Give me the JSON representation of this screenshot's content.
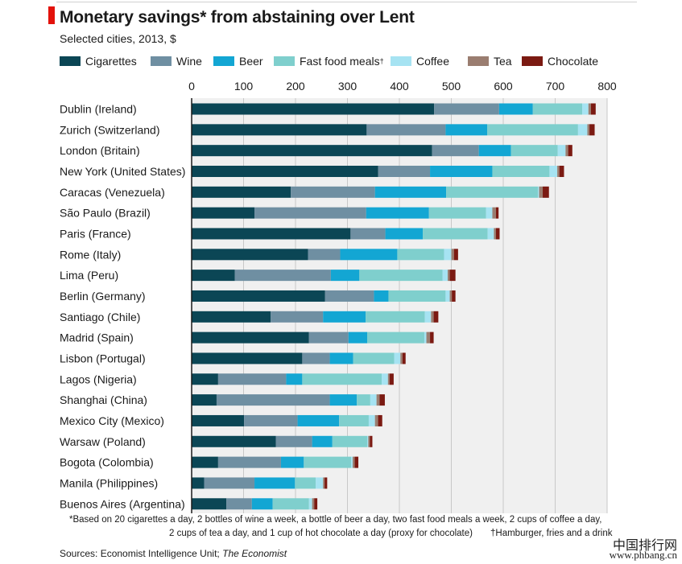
{
  "header": {
    "title": "Monetary savings* from abstaining over Lent",
    "subtitle": "Selected cities, 2013, $"
  },
  "colors": {
    "accent_red": "#e3120b",
    "grid": "#c8c8c8",
    "bar_background": "#f0f0f0"
  },
  "legend": [
    {
      "label": "Cigarettes",
      "color": "#0b4655"
    },
    {
      "label": "Wine",
      "color": "#6f8fa2"
    },
    {
      "label": "Beer",
      "color": "#13a6d3"
    },
    {
      "label": "Fast food meals",
      "dagger": "†",
      "color": "#7fcfcd"
    },
    {
      "label": "Coffee",
      "color": "#a6e3f2"
    },
    {
      "label": "Tea",
      "color": "#9a7d70"
    },
    {
      "label": "Chocolate",
      "color": "#7b1a12"
    }
  ],
  "chart_data": {
    "type": "bar",
    "orientation": "horizontal",
    "stacked": true,
    "title": "Monetary savings* from abstaining over Lent",
    "subtitle": "Selected cities, 2013, $",
    "xlim": [
      0,
      800
    ],
    "xticks": [
      0,
      100,
      200,
      300,
      400,
      500,
      600,
      700,
      800
    ],
    "xlabel": "",
    "ylabel": "",
    "grid": true,
    "legend_position": "top",
    "categories": [
      "Dublin (Ireland)",
      "Zurich (Switzerland)",
      "London (Britain)",
      "New York (United States)",
      "Caracas (Venezuela)",
      "São Paulo (Brazil)",
      "Paris (France)",
      "Rome (Italy)",
      "Lima (Peru)",
      "Berlin (Germany)",
      "Santiago (Chile)",
      "Madrid (Spain)",
      "Lisbon (Portugal)",
      "Lagos (Nigeria)",
      "Shanghai (China)",
      "Mexico City (Mexico)",
      "Warsaw (Poland)",
      "Bogota (Colombia)",
      "Manila (Philippines)",
      "Buenos Aires (Argentina)"
    ],
    "series": [
      {
        "name": "Cigarettes",
        "color": "#0b4655",
        "values": [
          467,
          337,
          463,
          359,
          191,
          121,
          306,
          224,
          83,
          257,
          152,
          226,
          213,
          51,
          48,
          101,
          162,
          51,
          24,
          67
        ]
      },
      {
        "name": "Wine",
        "color": "#6f8fa2",
        "values": [
          125,
          152,
          90,
          100,
          162,
          215,
          67,
          62,
          185,
          94,
          101,
          76,
          53,
          131,
          218,
          103,
          70,
          121,
          97,
          49
        ]
      },
      {
        "name": "Beer",
        "color": "#13a6d3",
        "values": [
          65,
          80,
          62,
          120,
          137,
          121,
          72,
          110,
          55,
          28,
          82,
          36,
          45,
          31,
          52,
          80,
          39,
          44,
          78,
          40
        ]
      },
      {
        "name": "Fast food meals",
        "color": "#7fcfcd",
        "values": [
          95,
          175,
          90,
          110,
          177,
          110,
          125,
          90,
          160,
          110,
          114,
          110,
          79,
          153,
          26,
          57,
          67,
          91,
          40,
          70
        ]
      },
      {
        "name": "Coffee",
        "color": "#a6e3f2",
        "values": [
          12,
          18,
          15,
          15,
          2,
          12,
          12,
          14,
          10,
          8,
          12,
          4,
          12,
          12,
          12,
          12,
          2,
          3,
          14,
          6
        ]
      },
      {
        "name": "Tea",
        "color": "#9a7d70",
        "values": [
          5,
          4,
          5,
          4,
          7,
          7,
          4,
          5,
          4,
          4,
          5,
          7,
          4,
          3,
          6,
          6,
          3,
          4,
          3,
          4
        ]
      },
      {
        "name": "Chocolate",
        "color": "#7b1a12",
        "values": [
          9,
          10,
          8,
          9,
          12,
          5,
          7,
          8,
          11,
          7,
          9,
          7,
          6,
          8,
          10,
          8,
          5,
          7,
          5,
          6
        ]
      }
    ]
  },
  "footnote": {
    "line1": "*Based on 20 cigarettes a day, 2 bottles of wine a week, a bottle of beer a day, two fast food meals a week, 2 cups of coffee a day,",
    "line2": "2 cups of tea a day, and 1 cup of hot chocolate a day (proxy for chocolate)",
    "dagger_note": "†Hamburger, fries and a drink"
  },
  "source": {
    "prefix": "Sources: Economist Intelligence Unit; ",
    "italic": "The Economist"
  },
  "watermark": {
    "line1": "中国排行网",
    "line2": "www.phbang.cn"
  }
}
